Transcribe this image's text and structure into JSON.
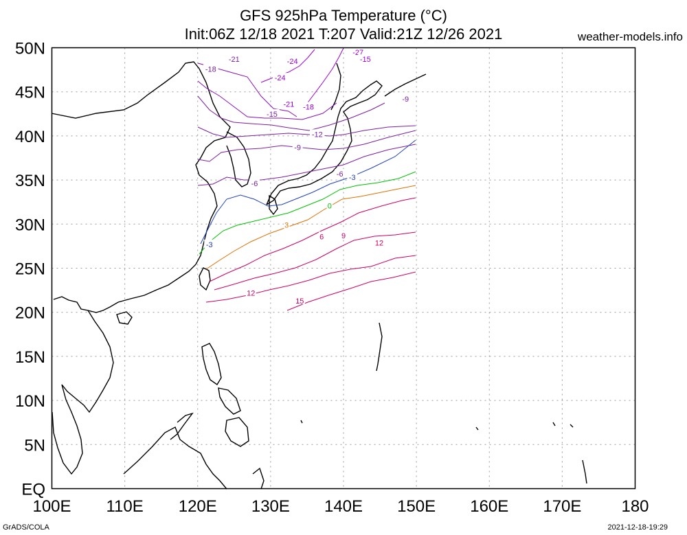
{
  "title_line1": "GFS 925hPa Temperature (°C)",
  "title_line2": "Init:06Z 12/18 2021 T:207 Valid:21Z 12/26 2021",
  "site": "weather-models.info",
  "footer_left": "GrADS/COLA",
  "footer_right": "2021-12-18-19:29",
  "axes": {
    "x_ticks": [
      "100E",
      "110E",
      "120E",
      "130E",
      "140E",
      "150E",
      "160E",
      "170E",
      "180"
    ],
    "y_ticks": [
      "50N",
      "45N",
      "40N",
      "35N",
      "30N",
      "25N",
      "20N",
      "15N",
      "10N",
      "5N",
      "EQ"
    ],
    "lon_range": [
      100,
      180
    ],
    "lat_range": [
      0,
      50
    ],
    "grid": true
  },
  "colors": {
    "very_cold": "#9b00d0",
    "cold": "#7a1fa2",
    "minus3": "#2040c0",
    "zero": "#00c000",
    "plus3": "#e07000",
    "warm": "#cc0066",
    "coast": "#000000"
  },
  "contour_labels": [
    {
      "text": "-27",
      "lon": 142,
      "lat": 49.5,
      "kind": "very_cold"
    },
    {
      "text": "-21",
      "lon": 125,
      "lat": 48.7,
      "kind": "cold"
    },
    {
      "text": "-24",
      "lon": 133,
      "lat": 48.5,
      "kind": "very_cold"
    },
    {
      "text": "-15",
      "lon": 143,
      "lat": 48.7,
      "kind": "very_cold"
    },
    {
      "text": "-18",
      "lon": 121.8,
      "lat": 47.6,
      "kind": "cold"
    },
    {
      "text": "-24",
      "lon": 131.3,
      "lat": 46.6,
      "kind": "very_cold"
    },
    {
      "text": "-9",
      "lon": 148.5,
      "lat": 44.2,
      "kind": "cold"
    },
    {
      "text": "-21",
      "lon": 132.5,
      "lat": 43.6,
      "kind": "very_cold"
    },
    {
      "text": "-18",
      "lon": 135.2,
      "lat": 43.3,
      "kind": "very_cold"
    },
    {
      "text": "-15",
      "lon": 130.2,
      "lat": 42.5,
      "kind": "cold"
    },
    {
      "text": "-12",
      "lon": 136.4,
      "lat": 40.2,
      "kind": "cold"
    },
    {
      "text": "-9",
      "lon": 133.7,
      "lat": 38.7,
      "kind": "cold"
    },
    {
      "text": "-6",
      "lon": 139.5,
      "lat": 35.7,
      "kind": "cold"
    },
    {
      "text": "-6",
      "lon": 127.8,
      "lat": 34.6,
      "kind": "cold"
    },
    {
      "text": "-3",
      "lon": 141.2,
      "lat": 35.3,
      "kind": "minus3"
    },
    {
      "text": "0",
      "lon": 138.1,
      "lat": 32.1,
      "kind": "zero"
    },
    {
      "text": "-3",
      "lon": 121.6,
      "lat": 27.7,
      "kind": "minus3"
    },
    {
      "text": "3",
      "lon": 132.2,
      "lat": 29.9,
      "kind": "plus3"
    },
    {
      "text": "6",
      "lon": 137.0,
      "lat": 28.6,
      "kind": "warm"
    },
    {
      "text": "9",
      "lon": 140.0,
      "lat": 28.7,
      "kind": "warm"
    },
    {
      "text": "12",
      "lon": 144.9,
      "lat": 27.9,
      "kind": "warm"
    },
    {
      "text": "12",
      "lon": 127.3,
      "lat": 22.2,
      "kind": "warm"
    },
    {
      "text": "15",
      "lon": 134.0,
      "lat": 21.3,
      "kind": "warm"
    }
  ]
}
